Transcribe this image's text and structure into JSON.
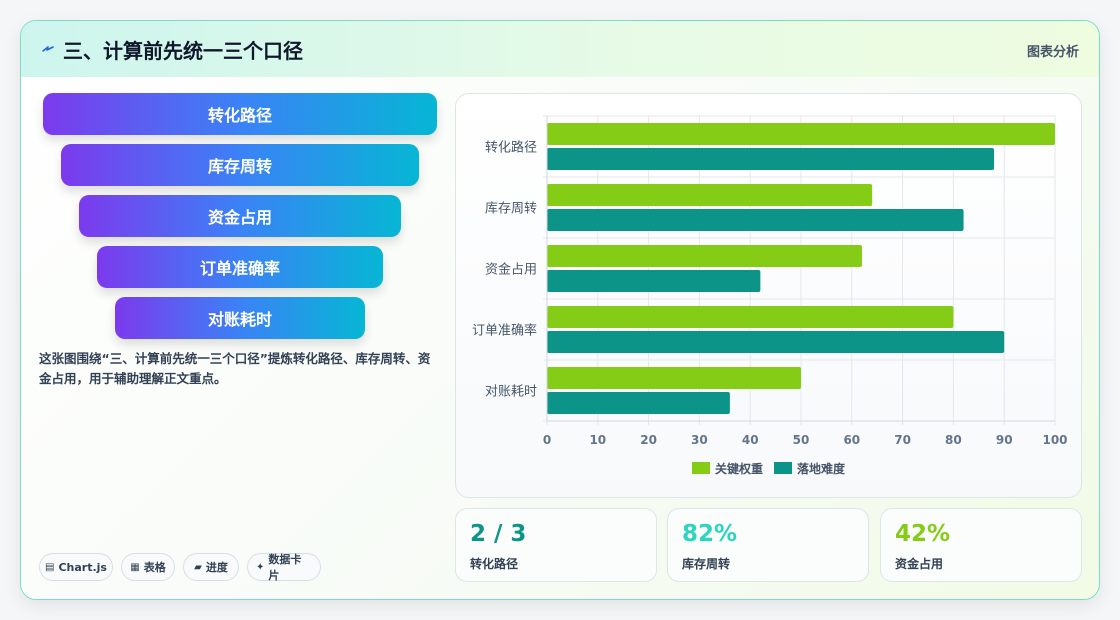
{
  "header": {
    "icon": "bolt-icon",
    "title": "三、计算前先统一三个口径",
    "tag": "图表分析"
  },
  "funnel": [
    {
      "label": "转化路径"
    },
    {
      "label": "库存周转"
    },
    {
      "label": "资金占用"
    },
    {
      "label": "订单准确率"
    },
    {
      "label": "对账耗时"
    }
  ],
  "description": "这张图围绕“三、计算前先统一三个口径”提炼转化路径、库存周转、资金占用，用于辅助理解正文重点。",
  "chips": [
    {
      "icon": "chart-icon",
      "glyph": "▤",
      "label": "Chart.js"
    },
    {
      "icon": "table-icon",
      "glyph": "▦",
      "label": "表格"
    },
    {
      "icon": "progress-icon",
      "glyph": "▰",
      "label": "进度"
    },
    {
      "icon": "sparkle-icon",
      "glyph": "✦",
      "label": "数据卡片"
    }
  ],
  "chart_data": {
    "type": "bar",
    "orientation": "horizontal",
    "categories": [
      "转化路径",
      "库存周转",
      "资金占用",
      "订单准确率",
      "对账耗时"
    ],
    "series": [
      {
        "name": "关键权重",
        "color": "#84cc16",
        "values": [
          100,
          64,
          62,
          80,
          50
        ]
      },
      {
        "name": "落地难度",
        "color": "#0d9488",
        "values": [
          88,
          82,
          42,
          90,
          36
        ]
      }
    ],
    "xlim": [
      0,
      100
    ],
    "xticks": [
      "0",
      "10",
      "20",
      "30",
      "40",
      "50",
      "60",
      "70",
      "80",
      "90",
      "100"
    ],
    "grid": true,
    "legend": "bottom"
  },
  "stats": [
    {
      "value": "2 / 3",
      "label": "转化路径",
      "color": "#0d9488"
    },
    {
      "value": "82%",
      "label": "库存周转",
      "color": "#2dd4bf"
    },
    {
      "value": "42%",
      "label": "资金占用",
      "color": "#84cc16"
    }
  ]
}
